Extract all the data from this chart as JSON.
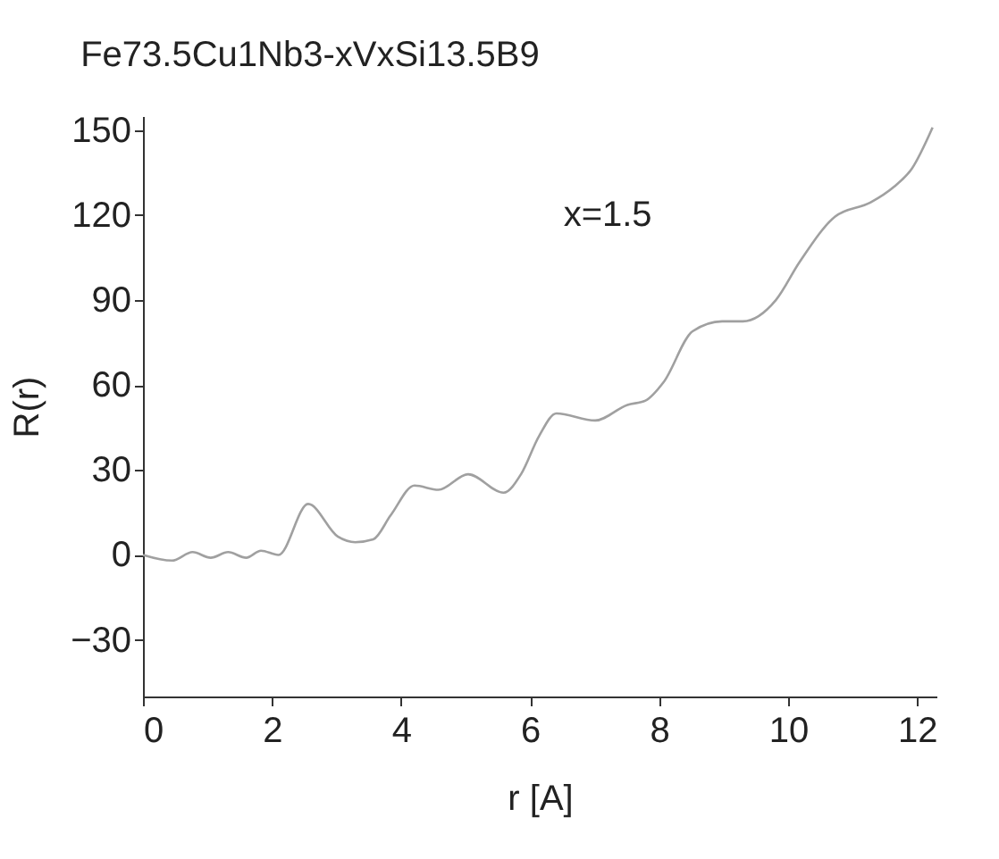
{
  "chart_data": {
    "type": "line",
    "title": "Fe73.5Cu1Nb3-xVxSi13.5B9",
    "xlabel": "r [A]",
    "ylabel": "R(r)",
    "annotations": [
      "x=1.5"
    ],
    "x": [
      0,
      0.45,
      0.77,
      1.05,
      1.32,
      1.6,
      1.83,
      2.1,
      2.56,
      3.02,
      3.29,
      3.57,
      3.84,
      4.21,
      4.58,
      5.04,
      5.59,
      5.86,
      6.14,
      6.41,
      7.01,
      7.51,
      7.79,
      8.07,
      8.52,
      8.98,
      9.3,
      9.81,
      10.18,
      10.73,
      11.28,
      11.64,
      11.92,
      12.24
    ],
    "series": [
      {
        "color": "#a0a0a0",
        "values": [
          0,
          -2,
          1,
          -1,
          1,
          -1,
          1.5,
          0,
          18,
          6.5,
          4.5,
          5.5,
          14,
          24.5,
          23,
          28.5,
          22,
          28.5,
          42,
          50,
          47.5,
          53,
          54.5,
          61,
          79,
          82.5,
          82.5,
          90,
          103.5,
          119.5,
          124.5,
          130,
          136.5,
          151
        ]
      }
    ],
    "xlim": [
      0,
      12.3
    ],
    "xticks": [
      0,
      2,
      4,
      6,
      8,
      10,
      12
    ],
    "ylim": [
      -50,
      155
    ],
    "yticks": [
      -30,
      0,
      30,
      60,
      90,
      120,
      150
    ],
    "grid": false,
    "marker": "none",
    "line_style": "solid"
  }
}
